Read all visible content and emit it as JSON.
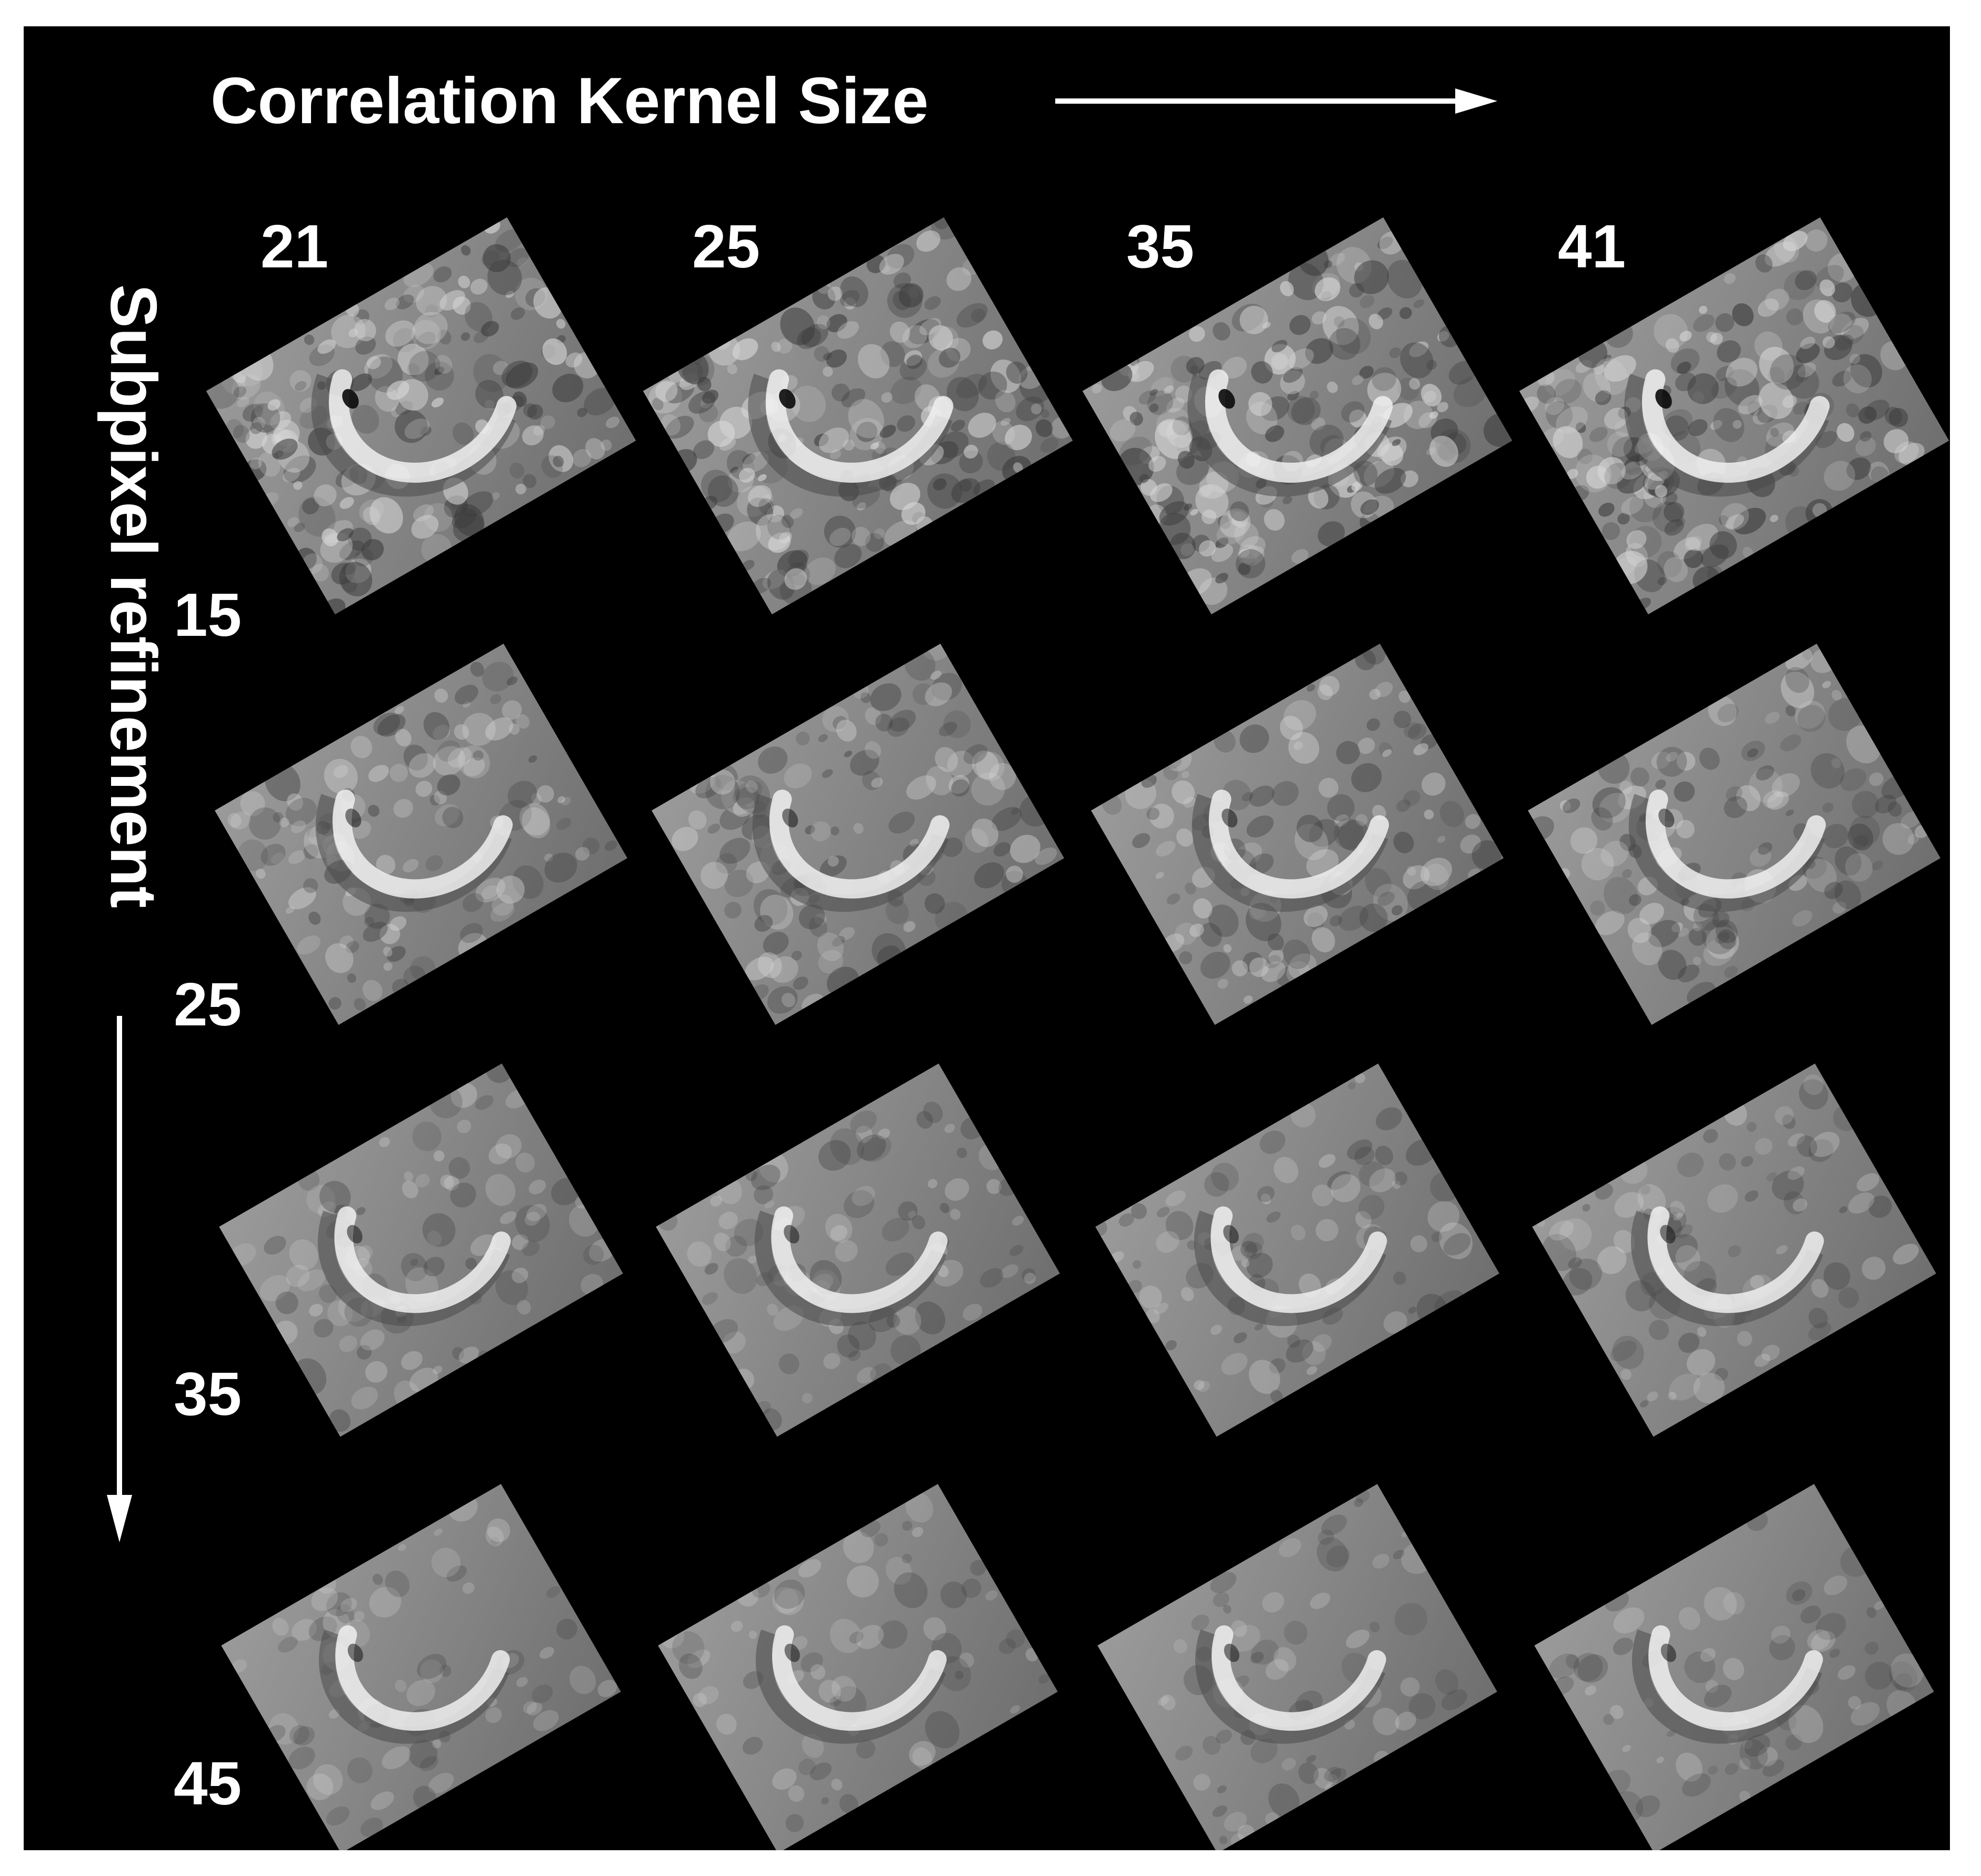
{
  "figure": {
    "title": "Correlation Kernel Size",
    "vertical_label": "Subpixel refinement",
    "column_labels": [
      "21",
      "25",
      "35",
      "41"
    ],
    "row_labels": [
      "15",
      "25",
      "35",
      "45"
    ],
    "background_color": "#000000",
    "text_color": "#ffffff",
    "tile_content": "shaded-relief crater DEM",
    "grid": {
      "rows": [
        {
          "label": "15",
          "tiles": [
            "21",
            "25",
            "35",
            "41"
          ],
          "roughness": "high"
        },
        {
          "label": "25",
          "tiles": [
            "21",
            "25",
            "35",
            "41"
          ],
          "roughness": "medium"
        },
        {
          "label": "35",
          "tiles": [
            "21",
            "25",
            "35",
            "41"
          ],
          "roughness": "low"
        },
        {
          "label": "45",
          "tiles": [
            "21",
            "25",
            "35",
            "41"
          ],
          "roughness": "very-low"
        }
      ]
    }
  }
}
